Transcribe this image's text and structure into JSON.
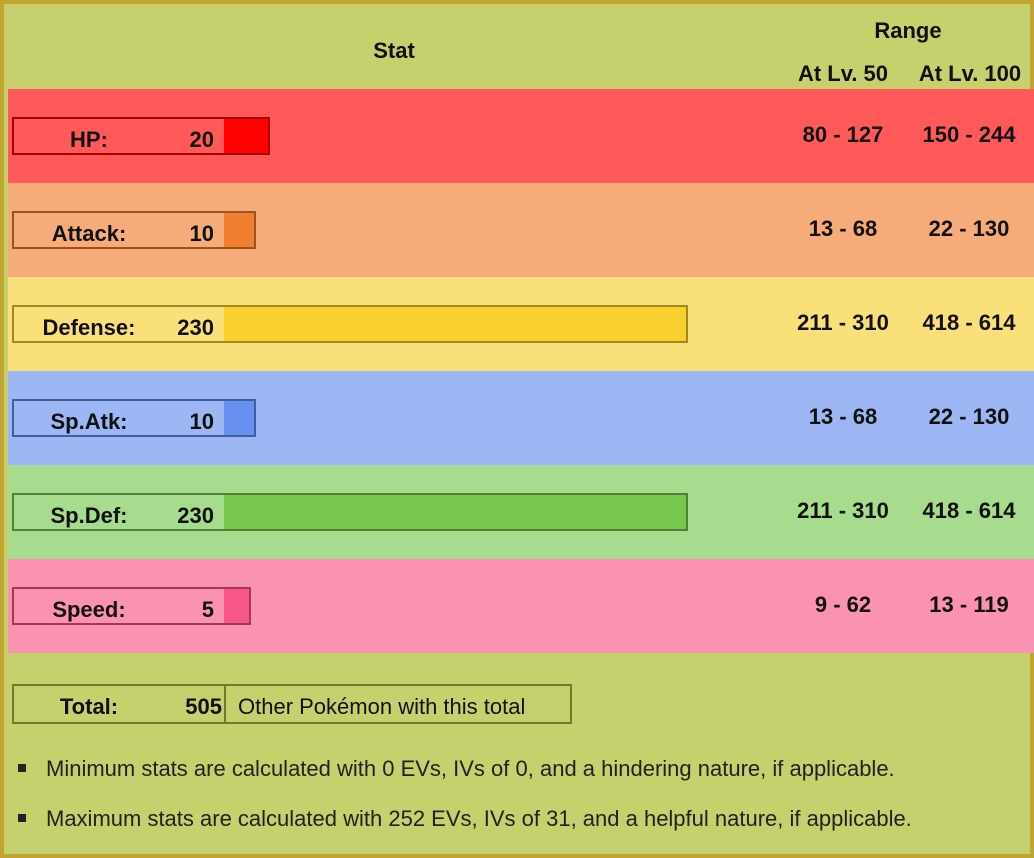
{
  "header": {
    "stat_label": "Stat",
    "range_label": "Range",
    "lv50_label": "At Lv. 50",
    "lv100_label": "At Lv. 100"
  },
  "stats": [
    {
      "name": "HP:",
      "value": 20,
      "lv50": "80 - 127",
      "lv100": "150 - 244",
      "row_color": "#ff5959",
      "bar_color": "#ff0000",
      "border_color": "#a60000",
      "label_bg": "#ff5959"
    },
    {
      "name": "Attack:",
      "value": 10,
      "lv50": "13 - 68",
      "lv100": "22 - 130",
      "row_color": "#f5ac78",
      "bar_color": "#f08030",
      "border_color": "#9c531f",
      "label_bg": "#f5ac78"
    },
    {
      "name": "Defense:",
      "value": 230,
      "lv50": "211 - 310",
      "lv100": "418 - 614",
      "row_color": "#fae078",
      "bar_color": "#f8d030",
      "border_color": "#a1871f",
      "label_bg": "#fae078"
    },
    {
      "name": "Sp.Atk:",
      "value": 10,
      "lv50": "13 - 68",
      "lv100": "22 - 130",
      "row_color": "#9db7f5",
      "bar_color": "#6890f0",
      "border_color": "#445e9c",
      "label_bg": "#9db7f5"
    },
    {
      "name": "Sp.Def:",
      "value": 230,
      "lv50": "211 - 310",
      "lv100": "418 - 614",
      "row_color": "#a7db8d",
      "bar_color": "#78c850",
      "border_color": "#4e8234",
      "label_bg": "#a7db8d"
    },
    {
      "name": "Speed:",
      "value": 5,
      "lv50": "9 - 62",
      "lv100": "13 - 119",
      "row_color": "#fa92b2",
      "bar_color": "#f85888",
      "border_color": "#a13959",
      "label_bg": "#fa92b2"
    }
  ],
  "max_stat": 230,
  "total": {
    "label": "Total:",
    "value": "505",
    "link": "Other Pokémon with this total"
  },
  "notes": [
    "Minimum stats are calculated with 0 EVs, IVs of 0, and a hindering nature, if applicable.",
    "Maximum stats are calculated with 252 EVs, IVs of 31, and a helpful nature, if applicable."
  ],
  "colors": {
    "background": "#c6d06d",
    "frame_border": "#c2a531"
  }
}
